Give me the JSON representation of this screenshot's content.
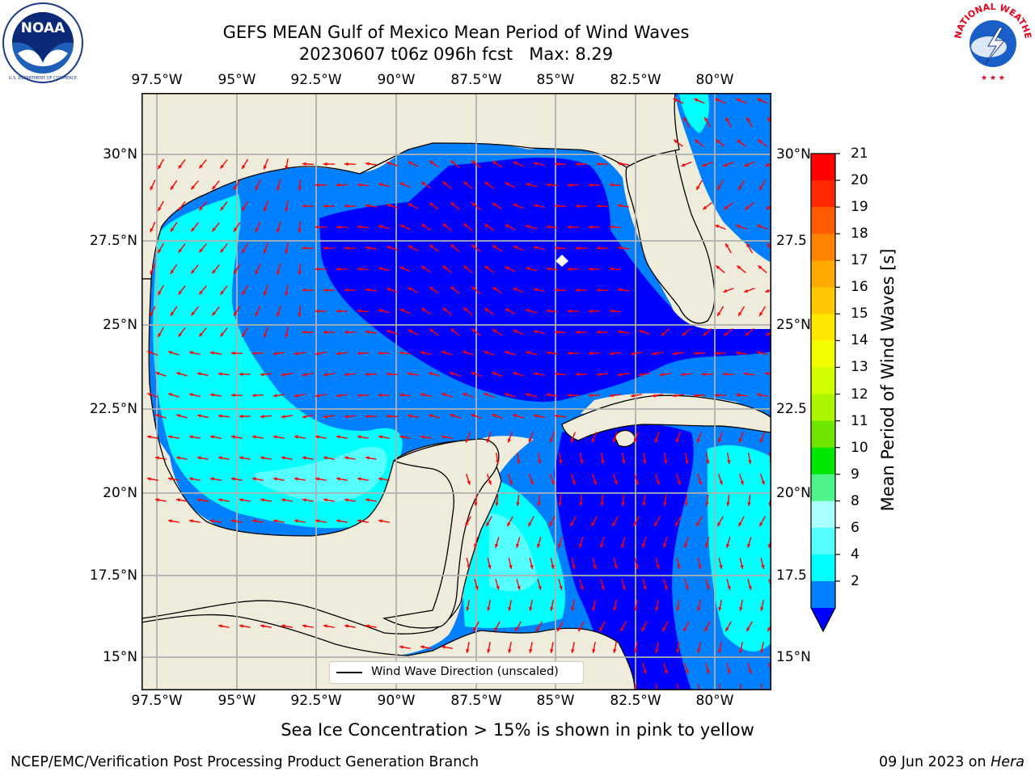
{
  "title": {
    "line1": "GEFS MEAN Gulf of Mexico Mean Period of Wind Waves",
    "line2": "20230607 t06z 096h fcst   Max: 8.29"
  },
  "logos": {
    "left": {
      "name": "noaa-logo",
      "text": "NOAA",
      "ring_text": "NATIONAL OCEANIC AND ATMOSPHERIC ADMINISTRATION · U.S. DEPARTMENT OF COMMERCE"
    },
    "right": {
      "name": "nws-logo",
      "ring_text": "NATIONAL WEATHER SERVICE"
    }
  },
  "map": {
    "lon_ticks": [
      "97.5°W",
      "95°W",
      "92.5°W",
      "90°W",
      "87.5°W",
      "85°W",
      "82.5°W",
      "80°W"
    ],
    "lat_ticks_left": [
      "30°N",
      "27.5°N",
      "25°N",
      "22.5°N",
      "20°N",
      "17.5°N",
      "15°N"
    ],
    "lat_ticks_right": [
      "30°N",
      "27.5",
      "25°N",
      "22.5",
      "20°N",
      "17.5",
      "15°N"
    ],
    "extent": {
      "lon_min": -98.0,
      "lon_max": -78.2,
      "lat_min": 14.0,
      "lat_max": 31.8
    },
    "land_color": "#efecdc",
    "grid_color": "#b0b0b0",
    "arrow_color": "#ff0000",
    "legend_label": "Wind Wave Direction (unscaled)"
  },
  "colorbar": {
    "title": "Mean Period of Wind Waves [s]",
    "labels": [
      "21",
      "20",
      "19",
      "18",
      "17",
      "16",
      "15",
      "14",
      "13",
      "12",
      "11",
      "10",
      "9",
      "8",
      "6",
      "4",
      "2"
    ],
    "colors": [
      "#ff0000",
      "#ff2a00",
      "#ff5a00",
      "#ff8200",
      "#ffa800",
      "#ffc800",
      "#ffe800",
      "#f2ff00",
      "#d2ff00",
      "#aaf500",
      "#6ee600",
      "#00e800",
      "#4cf48a",
      "#aaffff",
      "#55ffff",
      "#00ffff",
      "#0080ff"
    ],
    "extend_color": "#0000ff"
  },
  "subtitle": "Sea Ice Concentration > 15% is shown in pink to yellow",
  "footer": {
    "left": "NCEP/EMC/Verification Post Processing Product Generation Branch",
    "right_date": "09 Jun 2023 on ",
    "right_machine": "Hera"
  }
}
